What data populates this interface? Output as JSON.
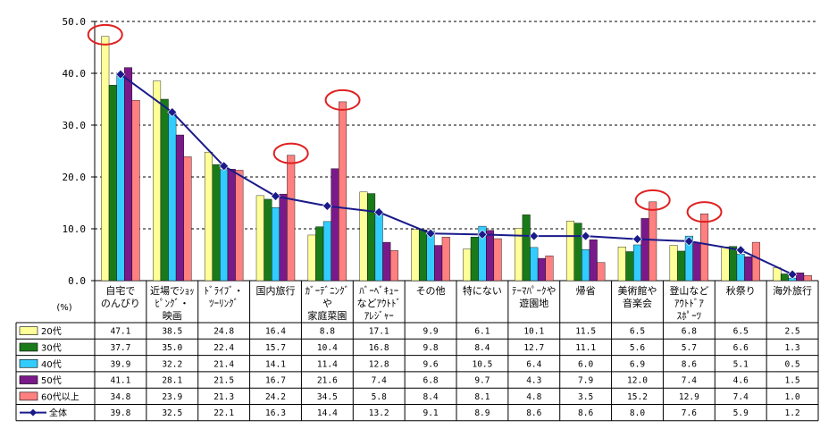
{
  "chart_data": {
    "type": "bar",
    "ylabel_unit": "(%)",
    "ylim": [
      0,
      50
    ],
    "yticks": [
      "0.0",
      "10.0",
      "20.0",
      "30.0",
      "40.0",
      "50.0"
    ],
    "categories": [
      [
        "自宅で",
        "のんびり"
      ],
      [
        "近場でｼｮｯ",
        "ﾋﾟﾝｸﾞ・",
        "映画"
      ],
      [
        "ﾄﾞﾗｲﾌﾞ・",
        "ﾂｰﾘﾝｸﾞ"
      ],
      [
        "国内旅行"
      ],
      [
        "ｶﾞｰﾃﾞﾆﾝｸﾞ",
        "や",
        "家庭菜園"
      ],
      [
        "ﾊﾞｰﾍﾞｷｭｰ",
        "などｱｳﾄﾄﾞ",
        "ｱﾚｼﾞｬｰ"
      ],
      [
        "その他"
      ],
      [
        "特にない"
      ],
      [
        "ﾃｰﾏﾊﾟｰｸや",
        "遊園地"
      ],
      [
        "帰省"
      ],
      [
        "美術館や",
        "音楽会"
      ],
      [
        "登山など",
        "ｱｳﾄﾄﾞｱ",
        "ｽﾎﾟｰﾂ"
      ],
      [
        "秋祭り"
      ],
      [
        "海外旅行"
      ]
    ],
    "series": [
      {
        "name": "20代",
        "color": "#FFFF99",
        "values": [
          "47.1",
          "38.5",
          "24.8",
          "16.4",
          "8.8",
          "17.1",
          "9.9",
          "6.1",
          "10.1",
          "11.5",
          "6.5",
          "6.8",
          "6.5",
          "2.5"
        ]
      },
      {
        "name": "30代",
        "color": "#1A7A1A",
        "values": [
          "37.7",
          "35.0",
          "22.4",
          "15.7",
          "10.4",
          "16.8",
          "9.8",
          "8.4",
          "12.7",
          "11.1",
          "5.6",
          "5.7",
          "6.6",
          "1.3"
        ]
      },
      {
        "name": "40代",
        "color": "#33CCFF",
        "values": [
          "39.9",
          "32.2",
          "21.4",
          "14.1",
          "11.4",
          "12.8",
          "9.6",
          "10.5",
          "6.4",
          "6.0",
          "6.9",
          "8.6",
          "5.1",
          "0.5"
        ]
      },
      {
        "name": "50代",
        "color": "#7A1A8A",
        "values": [
          "41.1",
          "28.1",
          "21.5",
          "16.7",
          "21.6",
          "7.4",
          "6.8",
          "9.7",
          "4.3",
          "7.9",
          "12.0",
          "7.4",
          "4.6",
          "1.5"
        ]
      },
      {
        "name": "60代以上",
        "color": "#FF8080",
        "values": [
          "34.8",
          "23.9",
          "21.3",
          "24.2",
          "34.5",
          "5.8",
          "8.4",
          "8.1",
          "4.8",
          "3.5",
          "15.2",
          "12.9",
          "7.4",
          "1.0"
        ]
      }
    ],
    "line": {
      "name": "全体",
      "color": "#1A1A8A",
      "values": [
        "39.8",
        "32.5",
        "22.1",
        "16.3",
        "14.4",
        "13.2",
        "9.1",
        "8.9",
        "8.6",
        "8.6",
        "8.0",
        "7.6",
        "5.9",
        "1.2"
      ]
    },
    "highlight_circles": [
      [
        0,
        0
      ],
      [
        3,
        4
      ],
      [
        4,
        4
      ],
      [
        10,
        4
      ],
      [
        11,
        4
      ]
    ],
    "grid": "dashed-horizontal",
    "legend": "table-left"
  }
}
